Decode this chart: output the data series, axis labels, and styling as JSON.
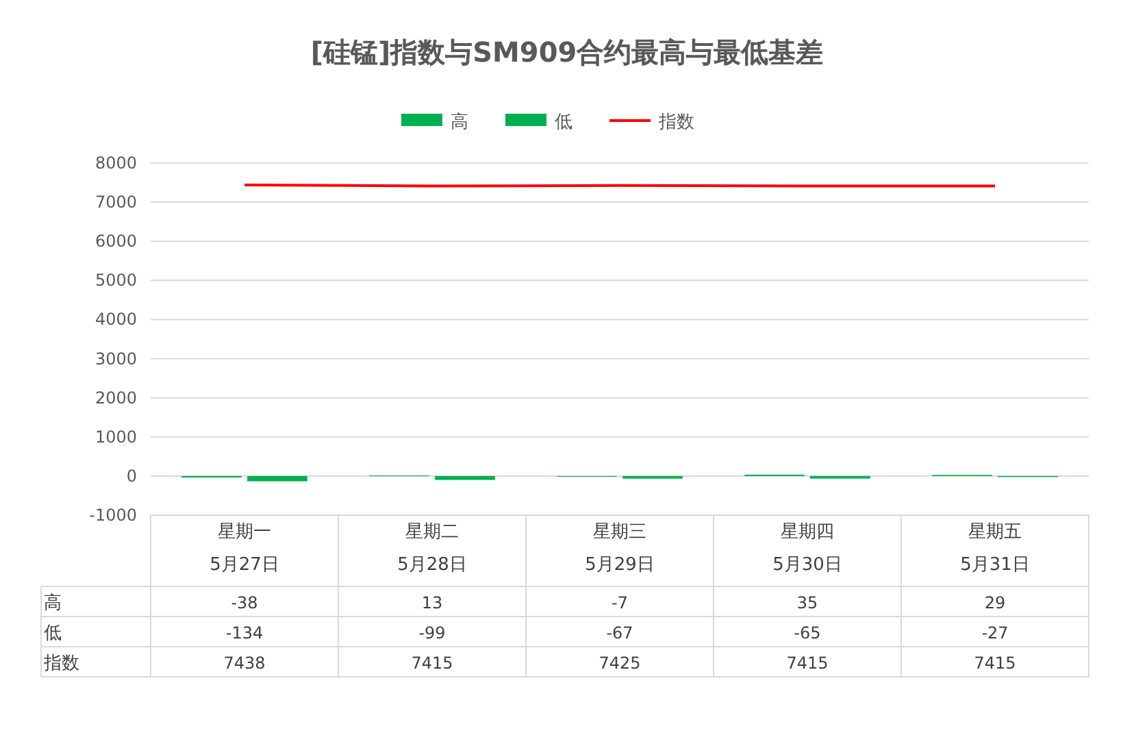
{
  "chart_data": {
    "type": "bar",
    "title": "[硅锰]指数与SM909合约最高与最低基差",
    "categories": [
      "星期一\n5月27日",
      "星期二\n5月28日",
      "星期三\n5月29日",
      "星期四\n5月30日",
      "星期五\n5月31日"
    ],
    "series": [
      {
        "name": "高",
        "color": "#00b050",
        "values": [
          -38,
          13,
          -7,
          35,
          29
        ]
      },
      {
        "name": "低",
        "color": "#00b050",
        "values": [
          -134,
          -99,
          -67,
          -65,
          -27
        ]
      },
      {
        "name": "指数",
        "type": "line",
        "color": "#ff0000",
        "values": [
          7438,
          7415,
          7425,
          7415,
          7415
        ]
      }
    ],
    "ylim": [
      -1000,
      8000
    ],
    "yticks": [
      -1000,
      0,
      1000,
      2000,
      3000,
      4000,
      5000,
      6000,
      7000,
      8000
    ],
    "grid": "y",
    "legend": "top",
    "data_labels": true
  }
}
